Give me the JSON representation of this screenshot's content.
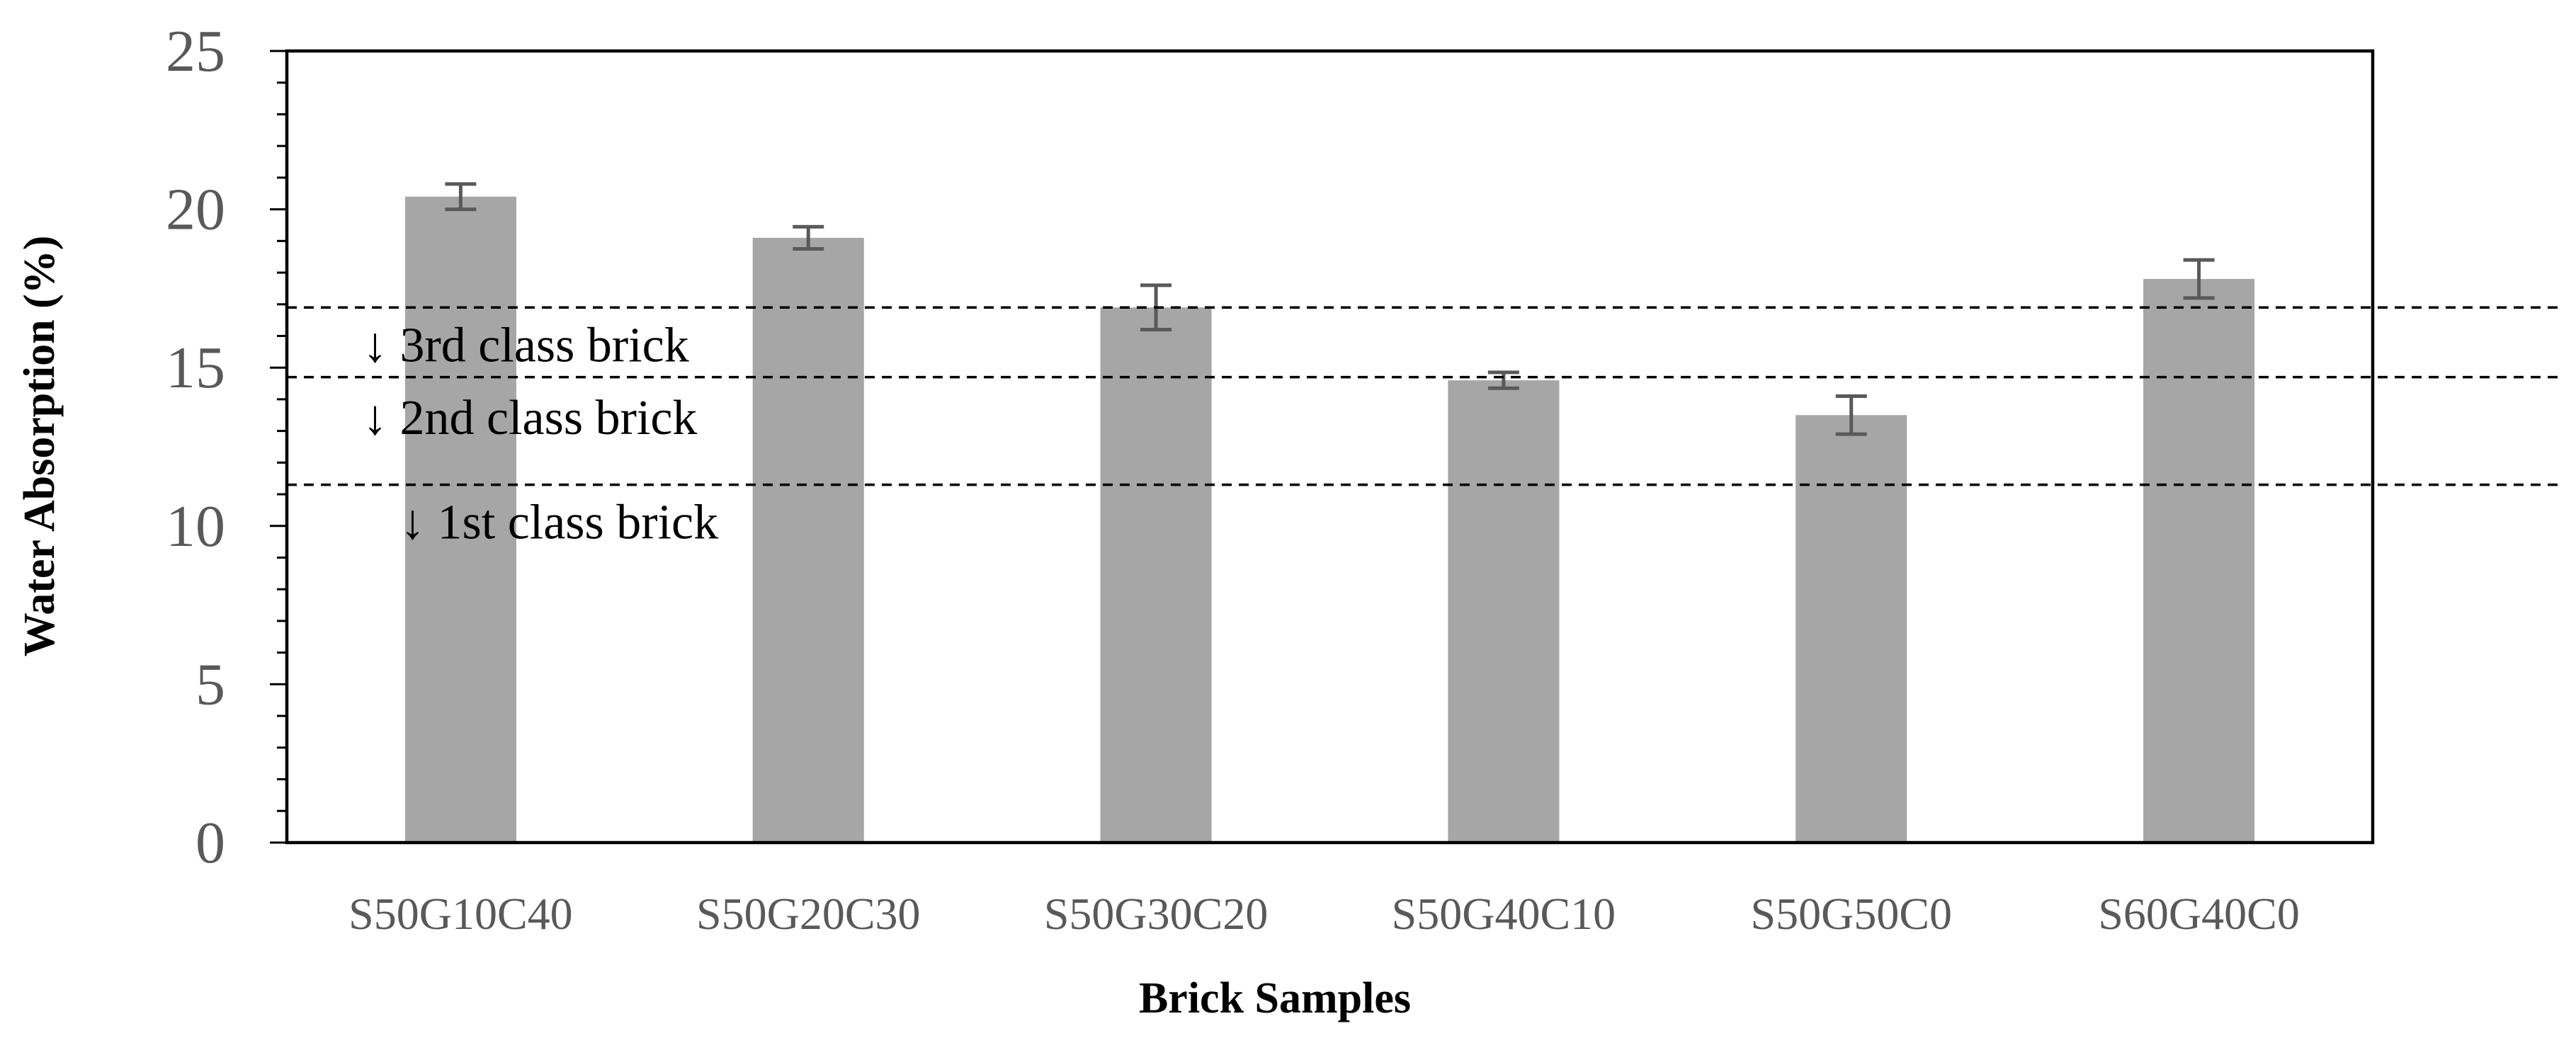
{
  "chart_data": {
    "type": "bar",
    "title": "",
    "xlabel": "Brick Samples",
    "ylabel": "Water Absorption (%)",
    "categories": [
      "S50G10C40",
      "S50G20C30",
      "S50G30C20",
      "S50G40C10",
      "S50G50C0",
      "S60G40C0"
    ],
    "values": [
      20.4,
      19.1,
      16.9,
      14.6,
      13.5,
      17.8
    ],
    "errors": [
      0.4,
      0.35,
      0.7,
      0.25,
      0.6,
      0.6
    ],
    "ylim": [
      0,
      25
    ],
    "yticks": [
      "0",
      "5",
      "10",
      "15",
      "20",
      "25"
    ],
    "grid": false,
    "legend": "none",
    "bar_color": "#a6a6a6",
    "error_color": "#595959",
    "reference_lines": [
      {
        "y": 16.9,
        "label": "↓ 3rd class brick",
        "label_y": 15.2
      },
      {
        "y": 14.7,
        "label": "↓ 2nd class brick",
        "label_y": 12.9
      },
      {
        "y": 11.3,
        "label": "↓ 1st class brick",
        "label_y": 9.6
      }
    ]
  }
}
